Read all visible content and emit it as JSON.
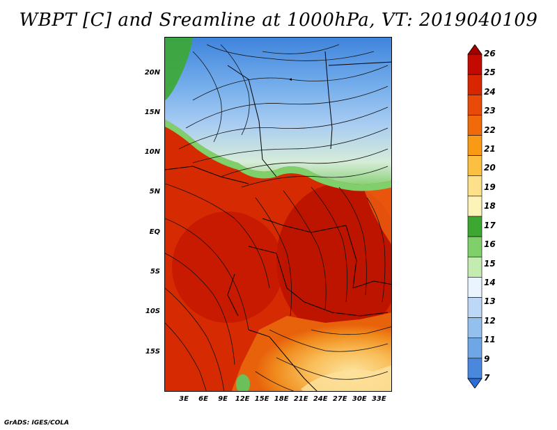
{
  "title": "WBPT [C] and Sreamline at 1000hPa, VT: 2019040109",
  "credit": "GrADS: IGES/COLA",
  "map": {
    "lon_range": [
      0,
      35
    ],
    "lat_range": [
      -20,
      24.5
    ],
    "lat_ticks": [
      {
        "value": 20,
        "label": "20N"
      },
      {
        "value": 15,
        "label": "15N"
      },
      {
        "value": 10,
        "label": "10N"
      },
      {
        "value": 5,
        "label": "5N"
      },
      {
        "value": 0,
        "label": "EQ"
      },
      {
        "value": -5,
        "label": "5S"
      },
      {
        "value": -10,
        "label": "10S"
      },
      {
        "value": -15,
        "label": "15S"
      }
    ],
    "lon_ticks": [
      {
        "value": 3,
        "label": "3E"
      },
      {
        "value": 6,
        "label": "6E"
      },
      {
        "value": 9,
        "label": "9E"
      },
      {
        "value": 12,
        "label": "12E"
      },
      {
        "value": 15,
        "label": "15E"
      },
      {
        "value": 18,
        "label": "18E"
      },
      {
        "value": 21,
        "label": "21E"
      },
      {
        "value": 24,
        "label": "24E"
      },
      {
        "value": 27,
        "label": "27E"
      },
      {
        "value": 30,
        "label": "30E"
      },
      {
        "value": 33,
        "label": "33E"
      }
    ]
  },
  "colorbar": {
    "labels": [
      "26",
      "25",
      "24",
      "23",
      "22",
      "21",
      "20",
      "19",
      "18",
      "17",
      "16",
      "15",
      "14",
      "13",
      "12",
      "11",
      "9",
      "7"
    ],
    "colors": [
      "#a50000",
      "#c20a00",
      "#d82600",
      "#e84a08",
      "#f06a0a",
      "#f89a14",
      "#fbc040",
      "#fde08a",
      "#fbf3b8",
      "#3ca832",
      "#7fd06a",
      "#c4ecb0",
      "#eaf4ff",
      "#bcd8f6",
      "#94c0ee",
      "#6ea6e6",
      "#4a88de",
      "#2a6ed6"
    ]
  }
}
